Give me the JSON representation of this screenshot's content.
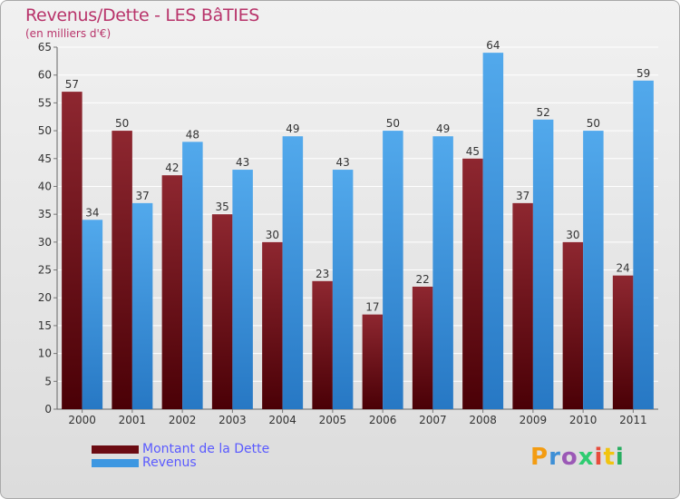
{
  "title": "Revenus/Dette - LES BâTIES",
  "subtitle": "(en milliers d'€)",
  "brand": {
    "text": "Proxiti",
    "letter_colors": [
      "#f39c12",
      "#3d8fd6",
      "#9b59b6",
      "#2ecc71",
      "#e74c3c",
      "#f1c40f",
      "#27ae60"
    ]
  },
  "legend": [
    {
      "label": "Montant de la Dette",
      "color": "#6b0b12"
    },
    {
      "label": "Revenus",
      "color": "#3d97e1"
    }
  ],
  "chart_data": {
    "type": "bar",
    "title": "Revenus/Dette - LES BâTIES",
    "subtitle": "(en milliers d'€)",
    "categories": [
      "2000",
      "2001",
      "2002",
      "2003",
      "2004",
      "2005",
      "2006",
      "2007",
      "2008",
      "2009",
      "2010",
      "2011"
    ],
    "series": [
      {
        "name": "Montant de la Dette",
        "color": "#6b0b12",
        "values": [
          57,
          50,
          42,
          35,
          30,
          23,
          17,
          22,
          45,
          37,
          30,
          24
        ]
      },
      {
        "name": "Revenus",
        "color": "#3d97e1",
        "values": [
          34,
          37,
          48,
          43,
          49,
          43,
          50,
          49,
          64,
          52,
          50,
          59
        ]
      }
    ],
    "ylim": [
      0,
      65
    ],
    "yticks": [
      0,
      5,
      10,
      15,
      20,
      25,
      30,
      35,
      40,
      45,
      50,
      55,
      60,
      65
    ],
    "grid": true,
    "legend_position": "bottom-left"
  }
}
